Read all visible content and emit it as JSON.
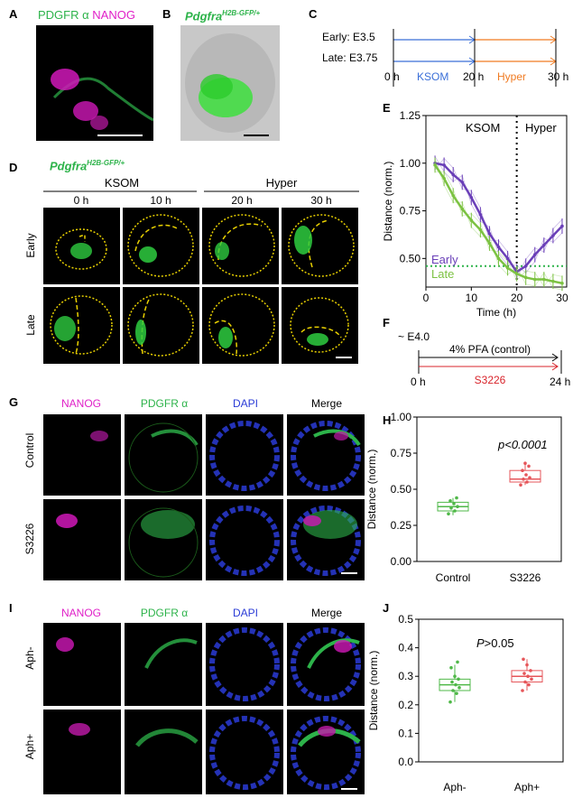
{
  "panels": {
    "A": {
      "letter": "A",
      "label_pdgfr": "PDGFR α",
      "label_nanog": "NANOG"
    },
    "B": {
      "letter": "B",
      "gene": "Pdgfra",
      "sup": "H2B-GFP/+"
    },
    "C": {
      "letter": "C",
      "early": "Early: E3.5",
      "late": "Late: E3.75",
      "t0": "0 h",
      "t20": "20 h",
      "t30": "30 h",
      "ksom": "KSOM",
      "hyper": "Hyper"
    },
    "D": {
      "letter": "D",
      "gene": "Pdgfra",
      "sup": "H2B-GFP/+",
      "ksom": "KSOM",
      "hyper": "Hyper",
      "times": [
        "0 h",
        "10 h",
        "20 h",
        "30 h"
      ],
      "rows": [
        "Early",
        "Late"
      ]
    },
    "E": {
      "letter": "E",
      "ksom": "KSOM",
      "hyper": "Hyper",
      "early": "Early",
      "late": "Late"
    },
    "F": {
      "letter": "F",
      "start": "~ E4.0",
      "control": "4% PFA (control)",
      "treatment": "S3226",
      "t0": "0 h",
      "t24": "24 h"
    },
    "G": {
      "letter": "G",
      "cols": [
        "NANOG",
        "PDGFR α",
        "DAPI",
        "Merge"
      ],
      "rows": [
        "Control",
        "S3226"
      ]
    },
    "H": {
      "letter": "H",
      "pvalue": "p<0.0001"
    },
    "I": {
      "letter": "I",
      "cols": [
        "NANOG",
        "PDGFR α",
        "DAPI",
        "Merge"
      ],
      "rows": [
        "Aph-",
        "Aph+"
      ]
    },
    "J": {
      "letter": "J",
      "pvalue_p": "P",
      "pvalue_rest": ">0.05"
    }
  },
  "chart_data": [
    {
      "panel": "E",
      "type": "line",
      "xlabel": "Time (h)",
      "ylabel": "Distance (norm.)",
      "xlim": [
        0,
        31
      ],
      "ylim": [
        0.35,
        1.25
      ],
      "xticks": [
        0,
        10,
        20,
        30
      ],
      "yticks": [
        0.5,
        0.75,
        1.0,
        1.25
      ],
      "ytick_labels": [
        "0.50",
        "0.75",
        "1.00",
        "1.25"
      ],
      "series": [
        {
          "name": "Early",
          "color": "#6a3fb8",
          "x": [
            2,
            4,
            6,
            8,
            10,
            12,
            14,
            16,
            18,
            20,
            22,
            24,
            26,
            28,
            30
          ],
          "y": [
            1.0,
            0.99,
            0.94,
            0.9,
            0.82,
            0.73,
            0.63,
            0.56,
            0.5,
            0.43,
            0.46,
            0.52,
            0.57,
            0.62,
            0.67
          ]
        },
        {
          "name": "Late",
          "color": "#7cc242",
          "x": [
            2,
            4,
            6,
            8,
            10,
            12,
            14,
            16,
            18,
            20,
            22,
            24,
            26,
            28,
            30
          ],
          "y": [
            0.99,
            0.92,
            0.83,
            0.76,
            0.7,
            0.65,
            0.58,
            0.5,
            0.45,
            0.42,
            0.4,
            0.39,
            0.39,
            0.38,
            0.37
          ]
        }
      ],
      "vline_x": 20,
      "hline_y": 0.46
    },
    {
      "panel": "H",
      "type": "box",
      "ylabel": "Distance (norm.)",
      "ylim": [
        0,
        1.0
      ],
      "yticks": [
        0.0,
        0.25,
        0.5,
        0.75,
        1.0
      ],
      "ytick_labels": [
        "0.00",
        "0.25",
        "0.50",
        "0.75",
        "1.00"
      ],
      "categories": [
        "Control",
        "S3226"
      ],
      "boxes": [
        {
          "color": "#4fb848",
          "q1": 0.35,
          "median": 0.38,
          "q3": 0.41,
          "min": 0.32,
          "max": 0.44,
          "points": [
            0.33,
            0.35,
            0.37,
            0.38,
            0.4,
            0.42,
            0.44
          ]
        },
        {
          "color": "#e6565a",
          "q1": 0.55,
          "median": 0.57,
          "q3": 0.63,
          "min": 0.53,
          "max": 0.68,
          "points": [
            0.53,
            0.55,
            0.57,
            0.58,
            0.6,
            0.63,
            0.66,
            0.68
          ]
        }
      ]
    },
    {
      "panel": "J",
      "type": "box",
      "ylabel": "Distance (norm.)",
      "ylim": [
        0,
        0.5
      ],
      "yticks": [
        0.0,
        0.1,
        0.2,
        0.3,
        0.4,
        0.5
      ],
      "ytick_labels": [
        "0.0",
        "0.1",
        "0.2",
        "0.3",
        "0.4",
        "0.5"
      ],
      "categories": [
        "Aph-",
        "Aph+"
      ],
      "boxes": [
        {
          "color": "#4fb848",
          "q1": 0.25,
          "median": 0.27,
          "q3": 0.29,
          "min": 0.21,
          "max": 0.34,
          "points": [
            0.21,
            0.24,
            0.25,
            0.26,
            0.27,
            0.28,
            0.29,
            0.3,
            0.33,
            0.35
          ]
        },
        {
          "color": "#e6565a",
          "q1": 0.28,
          "median": 0.3,
          "q3": 0.32,
          "min": 0.25,
          "max": 0.36,
          "points": [
            0.25,
            0.27,
            0.28,
            0.29,
            0.3,
            0.31,
            0.32,
            0.34,
            0.36
          ]
        }
      ]
    }
  ]
}
